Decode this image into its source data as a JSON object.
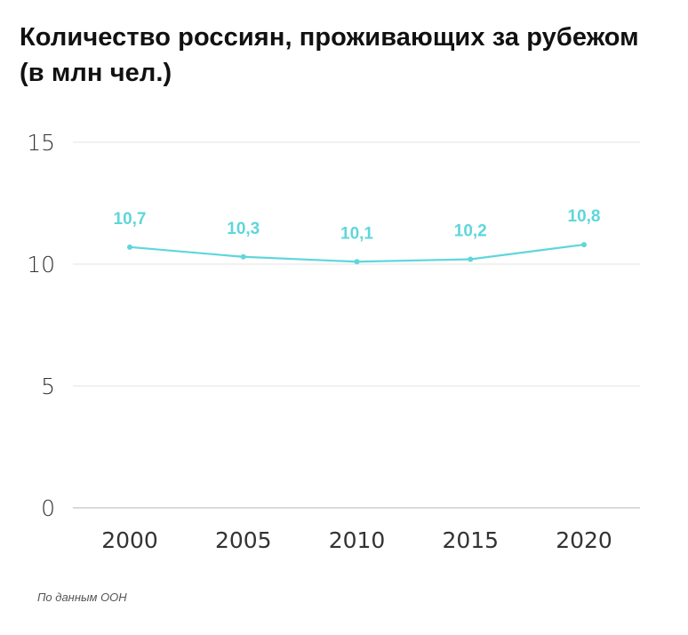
{
  "source": "По данным ООН",
  "chart_data": {
    "type": "line",
    "title": "Количество россиян, проживающих за рубежом (в млн чел.)",
    "xlabel": "",
    "ylabel": "",
    "x": [
      "2000",
      "2005",
      "2010",
      "2015",
      "2020"
    ],
    "values": [
      10.7,
      10.3,
      10.1,
      10.2,
      10.8
    ],
    "data_labels": [
      "10,7",
      "10,3",
      "10,1",
      "10,2",
      "10,8"
    ],
    "ylim": [
      0,
      15
    ],
    "yticks": [
      0,
      5,
      10,
      15
    ],
    "ytick_labels": [
      "0",
      "5",
      "10",
      "15"
    ],
    "grid": true,
    "legend": "none",
    "color": "#5fd6db",
    "grid_color": "#e3e3e3",
    "axis_color": "#b5b5b5"
  }
}
